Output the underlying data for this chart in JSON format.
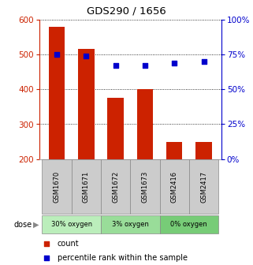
{
  "title": "GDS290 / 1656",
  "samples": [
    "GSM1670",
    "GSM1671",
    "GSM1672",
    "GSM1673",
    "GSM2416",
    "GSM2417"
  ],
  "counts": [
    580,
    517,
    375,
    402,
    248,
    250
  ],
  "percentiles": [
    75,
    74,
    67,
    67,
    69,
    70
  ],
  "ylim_left": [
    200,
    600
  ],
  "ylim_right": [
    0,
    100
  ],
  "yticks_left": [
    200,
    300,
    400,
    500,
    600
  ],
  "yticks_right": [
    0,
    25,
    50,
    75,
    100
  ],
  "bar_color": "#cc2200",
  "dot_color": "#0000cc",
  "group_boundaries": [
    [
      0,
      1,
      "30% oxygen",
      "#bbeebb"
    ],
    [
      2,
      3,
      "3% oxygen",
      "#99dd99"
    ],
    [
      4,
      5,
      "0% oxygen",
      "#77cc77"
    ]
  ],
  "left_axis_color": "#cc2200",
  "right_axis_color": "#0000cc",
  "bar_width": 0.55,
  "sample_box_color": "#cccccc",
  "grid_color": "#000000",
  "bg_color": "#ffffff"
}
